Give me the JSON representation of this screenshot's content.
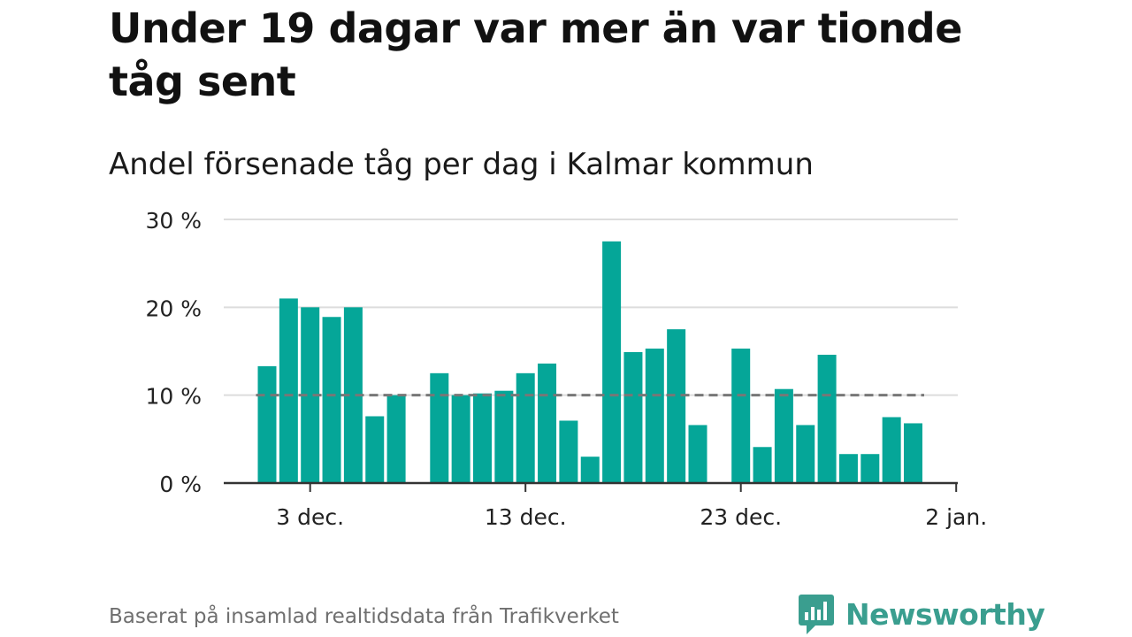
{
  "header": {
    "title": "Under 19 dagar var mer än var tionde tåg sent",
    "subtitle": "Andel försenade tåg per dag i Kalmar kommun"
  },
  "footer": {
    "source": "Baserat på insamlad realtidsdata från Trafikverket",
    "brand": "Newsworthy",
    "brand_icon": "bar-chart-logo-icon"
  },
  "colors": {
    "bar": "#05a698",
    "reference_line": "#777777",
    "grid": "#dddddd",
    "axis": "#333333",
    "brand": "#3a9e8f"
  },
  "chart_data": {
    "type": "bar",
    "x": [
      "2020-12-01",
      "2020-12-02",
      "2020-12-03",
      "2020-12-04",
      "2020-12-05",
      "2020-12-06",
      "2020-12-07",
      "2020-12-08",
      "2020-12-09",
      "2020-12-10",
      "2020-12-11",
      "2020-12-12",
      "2020-12-13",
      "2020-12-14",
      "2020-12-15",
      "2020-12-16",
      "2020-12-17",
      "2020-12-18",
      "2020-12-19",
      "2020-12-20",
      "2020-12-21",
      "2020-12-22",
      "2020-12-23",
      "2020-12-24",
      "2020-12-25",
      "2020-12-26",
      "2020-12-27",
      "2020-12-28",
      "2020-12-29",
      "2020-12-30",
      "2020-12-31"
    ],
    "values": [
      13.3,
      21.0,
      20.0,
      18.9,
      20.0,
      7.6,
      10.0,
      null,
      12.5,
      10.0,
      10.2,
      10.5,
      12.5,
      13.6,
      7.1,
      3.0,
      27.5,
      14.9,
      15.3,
      17.5,
      6.6,
      null,
      15.3,
      4.1,
      10.7,
      6.6,
      14.6,
      3.3,
      3.3,
      7.5,
      6.8
    ],
    "reference_value": 10,
    "ylim": [
      0,
      30
    ],
    "yticks": [
      0,
      10,
      20,
      30
    ],
    "ytick_labels": [
      "0 %",
      "10 %",
      "20 %",
      "30 %"
    ],
    "xticks": [
      "2020-12-03",
      "2020-12-13",
      "2020-12-23",
      "2021-01-02"
    ],
    "xtick_labels": [
      "3 dec.",
      "13 dec.",
      "23 dec.",
      "2 jan."
    ],
    "grid": true
  }
}
